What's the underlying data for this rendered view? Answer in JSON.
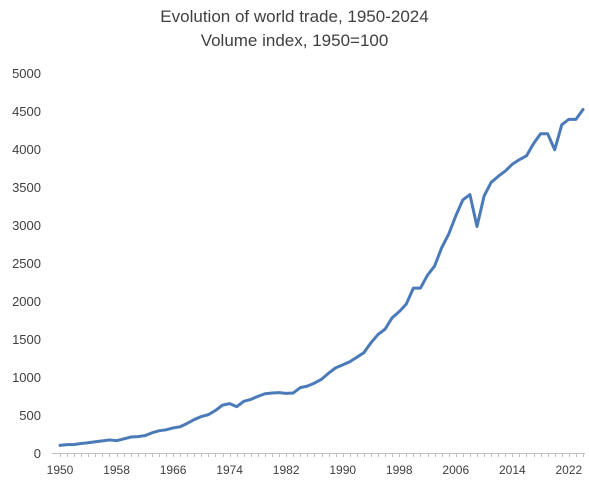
{
  "chart_data": {
    "type": "line",
    "title": "Evolution of world trade, 1950-2024",
    "subtitle": "Volume index, 1950=100",
    "xlabel": "",
    "ylabel": "",
    "ylim": [
      0,
      5000
    ],
    "xlim": [
      1950,
      2024
    ],
    "y_ticks": [
      "0",
      "500",
      "1000",
      "1500",
      "2000",
      "2500",
      "3000",
      "3500",
      "4000",
      "4500",
      "5000"
    ],
    "x_ticks": [
      "1950",
      "1958",
      "1966",
      "1974",
      "1982",
      "1990",
      "1998",
      "2006",
      "2014",
      "2022"
    ],
    "grid": false,
    "line_color": "#4a7ab8",
    "series": [
      {
        "x": [
          1950,
          1951,
          1952,
          1953,
          1954,
          1955,
          1956,
          1957,
          1958,
          1959,
          1960,
          1961,
          1962,
          1963,
          1964,
          1965,
          1966,
          1967,
          1968,
          1969,
          1970,
          1971,
          1972,
          1973,
          1974,
          1975,
          1976,
          1977,
          1978,
          1979,
          1980,
          1981,
          1982,
          1983,
          1984,
          1985,
          1986,
          1987,
          1988,
          1989,
          1990,
          1991,
          1992,
          1993,
          1994,
          1995,
          1996,
          1997,
          1998,
          1999,
          2000,
          2001,
          2002,
          2003,
          2004,
          2005,
          2006,
          2007,
          2008,
          2009,
          2010,
          2011,
          2012,
          2013,
          2014,
          2015,
          2016,
          2017,
          2018,
          2019,
          2020,
          2021,
          2022,
          2023,
          2024
        ],
        "values": [
          100,
          110,
          112,
          125,
          135,
          148,
          160,
          172,
          162,
          185,
          210,
          215,
          228,
          265,
          292,
          305,
          330,
          345,
          390,
          440,
          480,
          505,
          560,
          630,
          650,
          610,
          680,
          705,
          745,
          780,
          790,
          795,
          785,
          790,
          860,
          880,
          920,
          970,
          1050,
          1120,
          1160,
          1200,
          1260,
          1320,
          1450,
          1560,
          1630,
          1780,
          1860,
          1960,
          2170,
          2170,
          2340,
          2460,
          2700,
          2880,
          3120,
          3330,
          3400,
          2980,
          3380,
          3560,
          3640,
          3710,
          3800,
          3860,
          3910,
          4070,
          4200,
          4200,
          3990,
          4320,
          4390,
          4390,
          4520
        ]
      }
    ]
  }
}
